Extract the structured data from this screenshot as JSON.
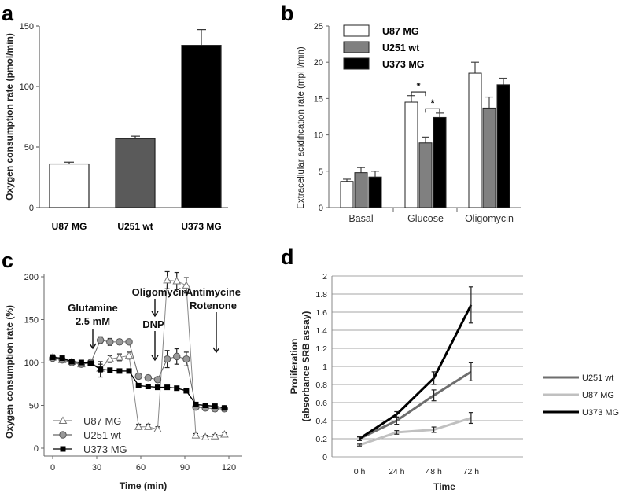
{
  "panel_labels": {
    "a": "a",
    "b": "b",
    "c": "c",
    "d": "d"
  },
  "chart_data": [
    {
      "panel": "a",
      "type": "bar",
      "title": "",
      "ylabel": "Oxygen consumption rate (pmol/min)",
      "xlabel": "",
      "ylim": [
        0,
        150
      ],
      "yticks": [
        "0",
        "50",
        "100",
        "150"
      ],
      "categories": [
        "U87 MG",
        "U251 wt",
        "U373 MG"
      ],
      "values": [
        36,
        57,
        134
      ],
      "errors": [
        1.5,
        2,
        13
      ],
      "colors": [
        "#ffffff",
        "#5a5a5a",
        "#000000"
      ]
    },
    {
      "panel": "b",
      "type": "bar",
      "title": "",
      "ylabel": "Extracellular acidification rate (mpH/min)",
      "xlabel": "",
      "ylim": [
        0,
        25
      ],
      "yticks": [
        "0",
        "5",
        "10",
        "15",
        "20",
        "25"
      ],
      "categories": [
        "Basal",
        "Glucose",
        "Oligomycin"
      ],
      "series": [
        {
          "name": "U87 MG",
          "color": "#ffffff",
          "values": [
            3.6,
            14.5,
            18.5
          ],
          "errors": [
            0.3,
            0.9,
            1.5
          ]
        },
        {
          "name": "U251 wt",
          "color": "#808080",
          "values": [
            4.8,
            8.9,
            13.7
          ],
          "errors": [
            0.7,
            0.8,
            1.5
          ]
        },
        {
          "name": "U373 MG",
          "color": "#000000",
          "values": [
            4.2,
            12.4,
            16.9
          ],
          "errors": [
            0.8,
            0.6,
            0.9
          ]
        }
      ],
      "significance": [
        "*",
        "*"
      ],
      "legend": "top-left"
    },
    {
      "panel": "c",
      "type": "line",
      "title": "",
      "xlabel": "Time (min)",
      "ylabel": "Oxygen consumption rate (%)",
      "xlim": [
        0,
        120
      ],
      "ylim": [
        0,
        200
      ],
      "xticks": [
        "0",
        "30",
        "60",
        "90",
        "120"
      ],
      "yticks": [
        "0",
        "50",
        "100",
        "150",
        "200"
      ],
      "x": [
        0,
        6.5,
        13,
        19.5,
        26,
        32.5,
        39,
        45.5,
        52,
        58.5,
        65,
        71.5,
        78,
        84.5,
        91,
        97.5,
        104,
        110.5,
        117
      ],
      "series": [
        {
          "name": "U87 MG",
          "marker": "triangle-open",
          "values": [
            106,
            103,
            101,
            98,
            100,
            93,
            104,
            106,
            108,
            25,
            25,
            22,
            196,
            195,
            190,
            15,
            13,
            14,
            16
          ],
          "errors": [
            3,
            3,
            3,
            3,
            3,
            5,
            4,
            4,
            4,
            3,
            3,
            3,
            10,
            10,
            9,
            2,
            2,
            2,
            2
          ]
        },
        {
          "name": "U251 wt",
          "marker": "circle-filled",
          "values": [
            105,
            103,
            100,
            98,
            100,
            126,
            124,
            124,
            124,
            84,
            82,
            80,
            104,
            107,
            104,
            48,
            47,
            46,
            46
          ],
          "errors": [
            2,
            2,
            2,
            2,
            2,
            4,
            4,
            3,
            3,
            3,
            3,
            3,
            10,
            9,
            8,
            3,
            3,
            3,
            3
          ]
        },
        {
          "name": "U373 MG",
          "marker": "square-filled",
          "values": [
            106,
            105,
            101,
            100,
            99,
            92,
            91,
            90,
            90,
            73,
            72,
            71,
            71,
            70,
            67,
            51,
            50,
            49,
            47
          ],
          "errors": [
            2,
            2,
            2,
            2,
            2,
            9,
            2,
            2,
            2,
            2,
            2,
            2,
            2,
            2,
            2,
            2,
            2,
            2,
            2
          ]
        }
      ],
      "annotations": [
        "Glutamine",
        "2.5 mM",
        "Oligomycin",
        "DNP",
        "Antimycine",
        "Rotenone"
      ],
      "legend": "bottom-left"
    },
    {
      "panel": "d",
      "type": "line",
      "title": "",
      "xlabel": "Time",
      "ylabel": "Proliferation",
      "ylabel2": "(absorbance SRB assay)",
      "categories": [
        "0 h",
        "24 h",
        "48 h",
        "72 h"
      ],
      "ylim": [
        0,
        2
      ],
      "yticks": [
        "0",
        "0.2",
        "0.4",
        "0.6",
        "0.8",
        "1",
        "1.2",
        "1.4",
        "1.6",
        "1.8",
        "2"
      ],
      "series": [
        {
          "name": "U251 wt",
          "color": "#6e6e6e",
          "values": [
            0.2,
            0.4,
            0.68,
            0.94
          ],
          "errors": [
            0.02,
            0.04,
            0.06,
            0.1
          ]
        },
        {
          "name": "U87 MG",
          "color": "#c0c0c0",
          "values": [
            0.13,
            0.27,
            0.3,
            0.43
          ],
          "errors": [
            0.01,
            0.02,
            0.03,
            0.06
          ]
        },
        {
          "name": "U373 MG",
          "color": "#000000",
          "values": [
            0.2,
            0.47,
            0.87,
            1.68
          ],
          "errors": [
            0.02,
            0.03,
            0.07,
            0.2
          ]
        }
      ],
      "legend": "right"
    }
  ]
}
